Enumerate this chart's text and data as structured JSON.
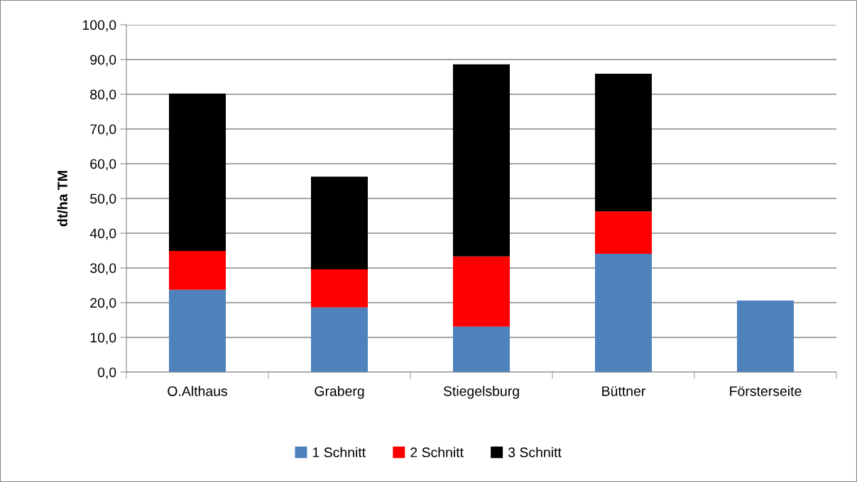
{
  "chart_data": {
    "type": "bar",
    "stacked": true,
    "ylabel": "dt/ha TM",
    "categories": [
      "O.Althaus",
      "Graberg",
      "Stiegelsburg",
      "Büttner",
      "Försterseite"
    ],
    "series": [
      {
        "name": "1 Schnitt",
        "color": "#4f81bd",
        "values": [
          23.7,
          18.6,
          13.1,
          34.1,
          20.6
        ]
      },
      {
        "name": "2 Schnitt",
        "color": "#ff0000",
        "values": [
          11.2,
          11.0,
          20.2,
          12.2,
          0
        ]
      },
      {
        "name": "3 Schnitt",
        "color": "#000000",
        "values": [
          45.3,
          26.7,
          55.3,
          39.6,
          0
        ]
      }
    ],
    "ylim": [
      0,
      100
    ],
    "yticks": [
      {
        "value": 0,
        "label": "0,0"
      },
      {
        "value": 10,
        "label": "10,0"
      },
      {
        "value": 20,
        "label": "20,0"
      },
      {
        "value": 30,
        "label": "30,0"
      },
      {
        "value": 40,
        "label": "40,0"
      },
      {
        "value": 50,
        "label": "50,0"
      },
      {
        "value": 60,
        "label": "60,0"
      },
      {
        "value": 70,
        "label": "70,0"
      },
      {
        "value": 80,
        "label": "80,0"
      },
      {
        "value": 90,
        "label": "90,0"
      },
      {
        "value": 100,
        "label": "100,0"
      }
    ],
    "grid": "y",
    "legend": "bottom"
  }
}
